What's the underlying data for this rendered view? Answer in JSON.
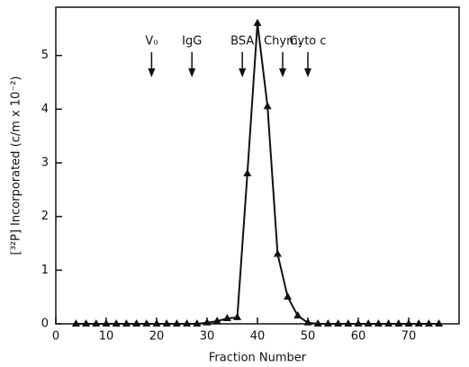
{
  "chart_data": {
    "type": "line",
    "x_label": "Fraction Number",
    "y_label": "[³²P] Incorporated (c/m x 10⁻²)",
    "x": [
      4,
      6,
      8,
      10,
      12,
      14,
      16,
      18,
      20,
      22,
      24,
      26,
      28,
      30,
      32,
      34,
      36,
      38,
      40,
      42,
      44,
      46,
      48,
      50,
      52,
      54,
      56,
      58,
      60,
      62,
      64,
      66,
      68,
      70,
      72,
      74,
      76
    ],
    "series": [
      {
        "name": "32P",
        "color": "#111111",
        "values": [
          0,
          0,
          0,
          0,
          0,
          0,
          0,
          0,
          0,
          0,
          0,
          0,
          0,
          0.02,
          0.05,
          0.1,
          0.12,
          2.8,
          5.6,
          4.05,
          1.3,
          0.5,
          0.15,
          0.02,
          0,
          0,
          0,
          0,
          0,
          0,
          0,
          0,
          0,
          0,
          0,
          0,
          0
        ]
      }
    ],
    "xlim": [
      0,
      80
    ],
    "xticks": [
      0,
      10,
      20,
      30,
      40,
      50,
      60,
      70
    ],
    "ylim": [
      0,
      5.9
    ],
    "yticks": [
      0,
      1,
      2,
      3,
      4,
      5
    ],
    "annotations": [
      {
        "text": "V₀",
        "x": 19
      },
      {
        "text": "IgG",
        "x": 27
      },
      {
        "text": "BSA",
        "x": 37
      },
      {
        "text": "Chym.",
        "x": 45
      },
      {
        "text": "Cyto c",
        "x": 50
      }
    ]
  }
}
